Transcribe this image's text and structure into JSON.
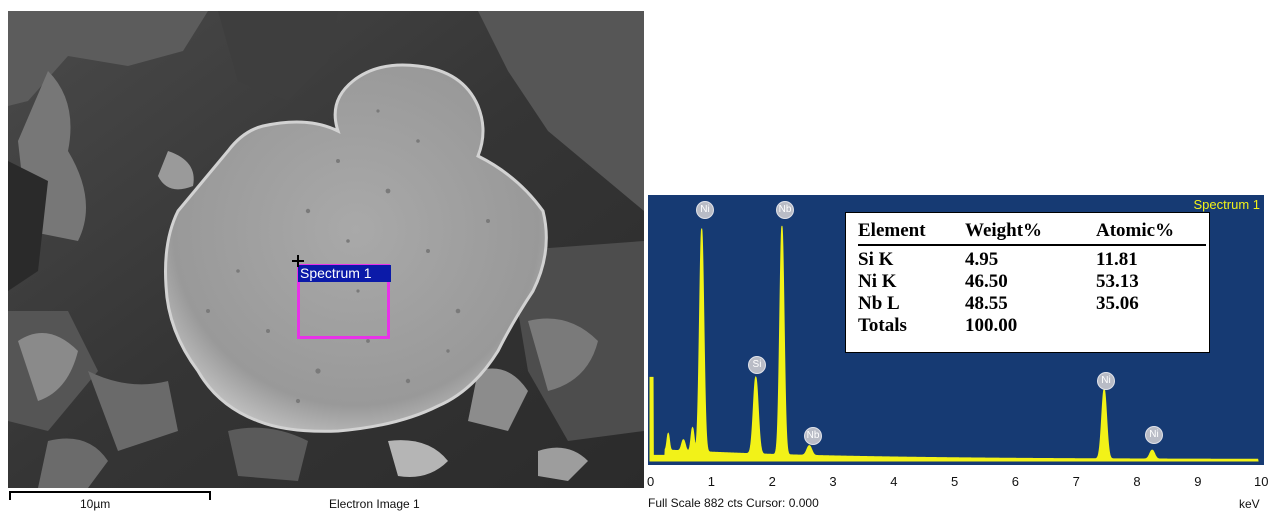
{
  "sem_image": {
    "roi_label": "Spectrum 1",
    "scale_bar_label": "10µm",
    "image_label": "Electron Image 1",
    "roi_color": "#e832e8"
  },
  "eds_spectrum": {
    "title": "Spectrum 1",
    "footer": "Full Scale 882 cts Cursor: 0.000",
    "unit": "keV",
    "background_color": "#163a73",
    "peak_color": "#f2f218",
    "x_ticks": [
      "0",
      "1",
      "2",
      "3",
      "4",
      "5",
      "6",
      "7",
      "8",
      "9",
      "10"
    ],
    "peak_markers": [
      "Ni",
      "Nb",
      "Si",
      "Nb",
      "Ni",
      "Ni"
    ],
    "table": {
      "headers": [
        "Element",
        "Weight%",
        "Atomic%"
      ],
      "rows": [
        [
          "Si K",
          "4.95",
          "11.81"
        ],
        [
          "Ni K",
          "46.50",
          "53.13"
        ],
        [
          "Nb L",
          "48.55",
          "35.06"
        ],
        [
          "Totals",
          "100.00",
          ""
        ]
      ]
    }
  },
  "chart_data": {
    "type": "area",
    "title": "Spectrum 1",
    "xlabel": "keV",
    "ylabel": "",
    "xlim": [
      0,
      10
    ],
    "ylim": [
      0,
      882
    ],
    "peaks": [
      {
        "label": "Ni",
        "x": 0.85,
        "y": 800
      },
      {
        "label": "Nb",
        "x": 2.17,
        "y": 820
      },
      {
        "label": "Si",
        "x": 1.74,
        "y": 275
      },
      {
        "label": "Nb",
        "x": 2.62,
        "y": 35
      },
      {
        "label": "Ni",
        "x": 7.47,
        "y": 250
      },
      {
        "label": "Ni",
        "x": 8.26,
        "y": 32
      }
    ]
  }
}
